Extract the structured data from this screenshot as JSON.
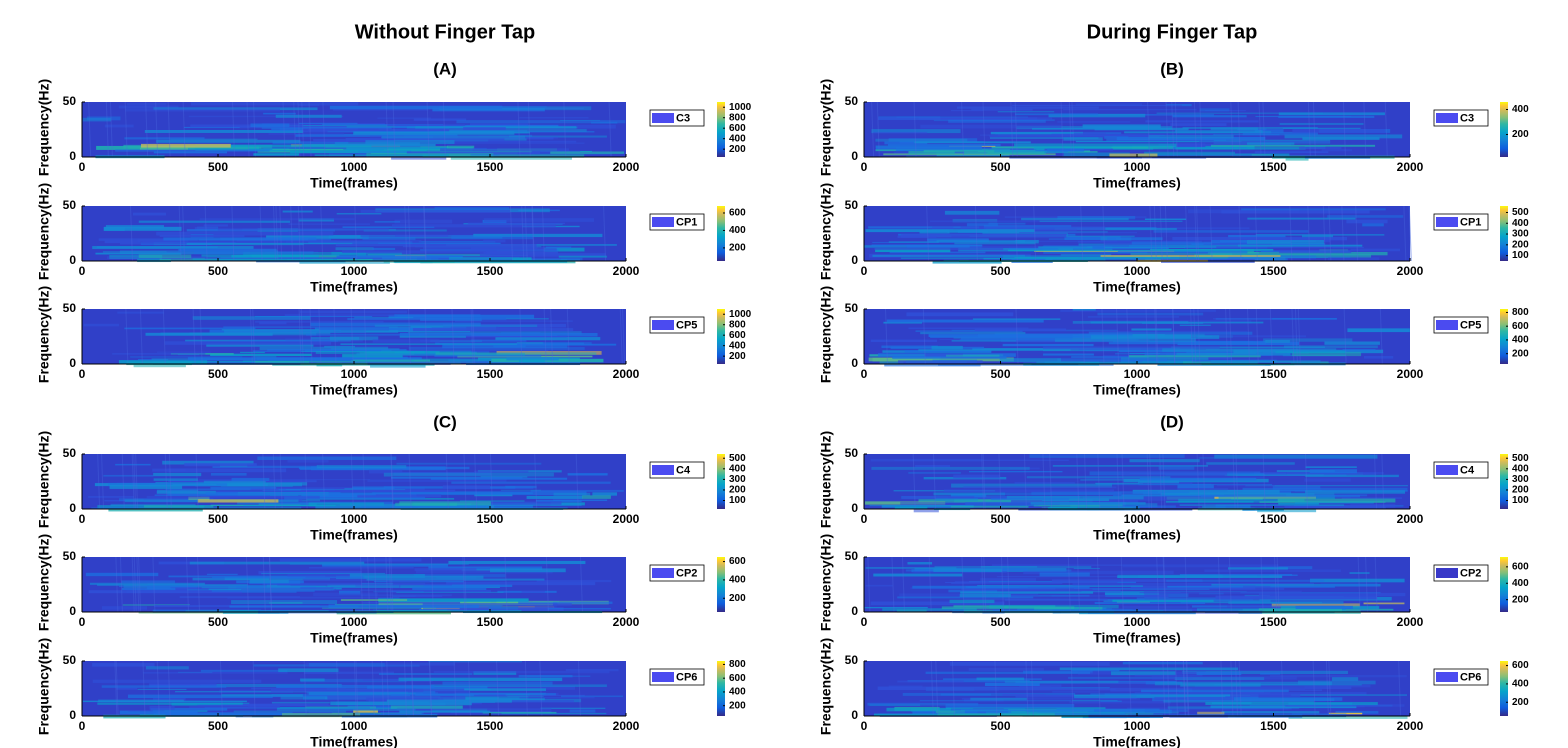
{
  "headers": {
    "left_title": "Without Finger Tap",
    "right_title": "During Finger Tap",
    "panel_labels": [
      "(A)",
      "(B)",
      "(C)",
      "(D)"
    ]
  },
  "chart_data": [
    {
      "type": "spectrogram",
      "xlabel": "Time(frames)",
      "ylabel": "Frequency(Hz)",
      "legend": "C3",
      "legend_color": "#4b4bf0",
      "xlim": [
        0,
        2000
      ],
      "xticks": [
        0,
        500,
        1000,
        1500,
        2000
      ],
      "ylim": [
        0,
        50
      ],
      "yticks": [
        0,
        50
      ],
      "clim": [
        50,
        1100
      ],
      "cticks": [
        200,
        400,
        600,
        800,
        1000
      ]
    },
    {
      "type": "spectrogram",
      "xlabel": "Time(frames)",
      "ylabel": "Frequency(Hz)",
      "legend": "CP1",
      "legend_color": "#4b4bf0",
      "xlim": [
        0,
        2000
      ],
      "xticks": [
        0,
        500,
        1000,
        1500,
        2000
      ],
      "ylim": [
        0,
        50
      ],
      "yticks": [
        0,
        50
      ],
      "clim": [
        50,
        680
      ],
      "cticks": [
        200,
        400,
        600
      ]
    },
    {
      "type": "spectrogram",
      "xlabel": "Time(frames)",
      "ylabel": "Frequency(Hz)",
      "legend": "CP5",
      "legend_color": "#4b4bf0",
      "xlim": [
        0,
        2000
      ],
      "xticks": [
        0,
        500,
        1000,
        1500,
        2000
      ],
      "ylim": [
        0,
        50
      ],
      "yticks": [
        0,
        50
      ],
      "clim": [
        50,
        1100
      ],
      "cticks": [
        200,
        400,
        600,
        800,
        1000
      ]
    },
    {
      "type": "spectrogram",
      "xlabel": "Time(frames)",
      "ylabel": "Frequency(Hz)",
      "legend": "C3",
      "legend_color": "#4b4bf0",
      "xlim": [
        0,
        2000
      ],
      "xticks": [
        0,
        500,
        1000,
        1500,
        2000
      ],
      "ylim": [
        0,
        50
      ],
      "yticks": [
        0,
        50
      ],
      "clim": [
        20,
        460
      ],
      "cticks": [
        200,
        400
      ]
    },
    {
      "type": "spectrogram",
      "xlabel": "Time(frames)",
      "ylabel": "Frequency(Hz)",
      "legend": "CP1",
      "legend_color": "#4b4bf0",
      "xlim": [
        0,
        2000
      ],
      "xticks": [
        0,
        500,
        1000,
        1500,
        2000
      ],
      "ylim": [
        0,
        50
      ],
      "yticks": [
        0,
        50
      ],
      "clim": [
        50,
        560
      ],
      "cticks": [
        100,
        200,
        300,
        400,
        500
      ]
    },
    {
      "type": "spectrogram",
      "xlabel": "Time(frames)",
      "ylabel": "Frequency(Hz)",
      "legend": "CP5",
      "legend_color": "#4b4bf0",
      "xlim": [
        0,
        2000
      ],
      "xticks": [
        0,
        500,
        1000,
        1500,
        2000
      ],
      "ylim": [
        0,
        50
      ],
      "yticks": [
        0,
        50
      ],
      "clim": [
        50,
        850
      ],
      "cticks": [
        200,
        400,
        600,
        800
      ]
    },
    {
      "type": "spectrogram",
      "xlabel": "Time(frames)",
      "ylabel": "Frequency(Hz)",
      "legend": "C4",
      "legend_color": "#4b4bf0",
      "xlim": [
        0,
        2000
      ],
      "xticks": [
        0,
        500,
        1000,
        1500,
        2000
      ],
      "ylim": [
        0,
        50
      ],
      "yticks": [
        0,
        50
      ],
      "clim": [
        20,
        540
      ],
      "cticks": [
        100,
        200,
        300,
        400,
        500
      ]
    },
    {
      "type": "spectrogram",
      "xlabel": "Time(frames)",
      "ylabel": "Frequency(Hz)",
      "legend": "CP2",
      "legend_color": "#4b4bf0",
      "xlim": [
        0,
        2000
      ],
      "xticks": [
        0,
        500,
        1000,
        1500,
        2000
      ],
      "ylim": [
        0,
        50
      ],
      "yticks": [
        0,
        50
      ],
      "clim": [
        50,
        650
      ],
      "cticks": [
        200,
        400,
        600
      ]
    },
    {
      "type": "spectrogram",
      "xlabel": "Time(frames)",
      "ylabel": "Frequency(Hz)",
      "legend": "CP6",
      "legend_color": "#4b4bf0",
      "xlim": [
        0,
        2000
      ],
      "xticks": [
        0,
        500,
        1000,
        1500,
        2000
      ],
      "ylim": [
        0,
        50
      ],
      "yticks": [
        0,
        50
      ],
      "clim": [
        50,
        850
      ],
      "cticks": [
        200,
        400,
        600,
        800
      ]
    },
    {
      "type": "spectrogram",
      "xlabel": "Time(frames)",
      "ylabel": "Frequency(Hz)",
      "legend": "C4",
      "legend_color": "#4b4bf0",
      "xlim": [
        0,
        2000
      ],
      "xticks": [
        0,
        500,
        1000,
        1500,
        2000
      ],
      "ylim": [
        0,
        50
      ],
      "yticks": [
        0,
        50
      ],
      "clim": [
        20,
        540
      ],
      "cticks": [
        100,
        200,
        300,
        400,
        500
      ]
    },
    {
      "type": "spectrogram",
      "xlabel": "Time(frames)",
      "ylabel": "Frequency(Hz)",
      "legend": "CP2",
      "legend_color": "#3838c8",
      "xlim": [
        0,
        2000
      ],
      "xticks": [
        0,
        500,
        1000,
        1500,
        2000
      ],
      "ylim": [
        0,
        50
      ],
      "yticks": [
        0,
        50
      ],
      "clim": [
        50,
        720
      ],
      "cticks": [
        200,
        400,
        600
      ]
    },
    {
      "type": "spectrogram",
      "xlabel": "Time(frames)",
      "ylabel": "Frequency(Hz)",
      "legend": "CP6",
      "legend_color": "#4b4bf0",
      "xlim": [
        0,
        2000
      ],
      "xticks": [
        0,
        500,
        1000,
        1500,
        2000
      ],
      "ylim": [
        0,
        50
      ],
      "yticks": [
        0,
        50
      ],
      "clim": [
        50,
        650
      ],
      "cticks": [
        200,
        400,
        600
      ]
    }
  ]
}
